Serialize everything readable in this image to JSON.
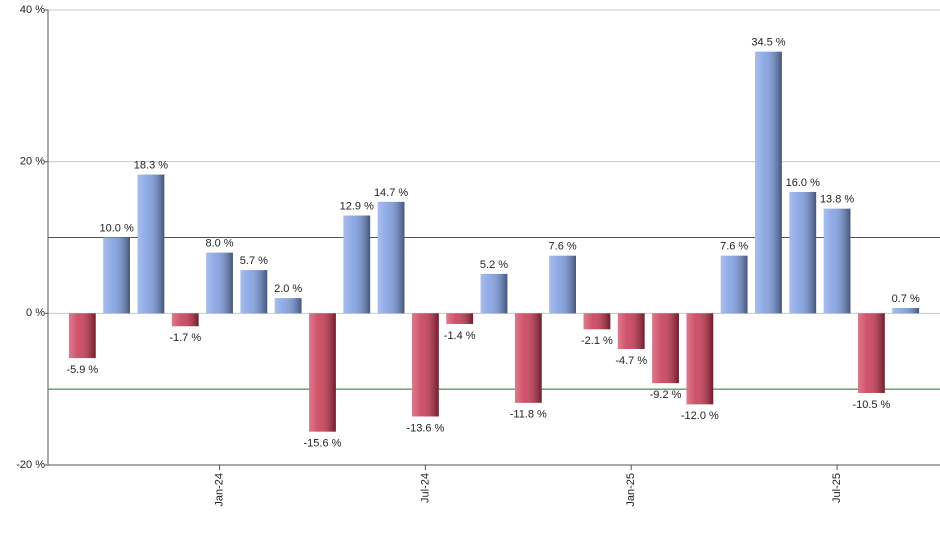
{
  "chart_data": {
    "type": "bar",
    "categories": [
      null,
      null,
      null,
      null,
      "Jan-24",
      null,
      null,
      null,
      null,
      null,
      "Jul-24",
      null,
      null,
      null,
      null,
      null,
      "Jan-25",
      null,
      null,
      null,
      null,
      null,
      "Jul-25",
      null,
      null
    ],
    "values": [
      -5.9,
      10.0,
      18.3,
      -1.7,
      8.0,
      5.7,
      2.0,
      -15.6,
      12.9,
      14.7,
      -13.6,
      -1.4,
      5.2,
      -11.8,
      7.6,
      -2.1,
      -4.7,
      -9.2,
      -12.0,
      7.6,
      34.5,
      16.0,
      13.8,
      -10.5,
      0.7
    ],
    "value_labels": [
      "-5.9 %",
      "10.0 %",
      "18.3 %",
      "-1.7 %",
      "8.0 %",
      "5.7 %",
      "2.0 %",
      "-15.6 %",
      "12.9 %",
      "14.7 %",
      "-13.6 %",
      "-1.4 %",
      "5.2 %",
      "-11.8 %",
      "7.6 %",
      "-2.1 %",
      "-4.7 %",
      "-9.2 %",
      "-12.0 %",
      "7.6 %",
      "34.5 %",
      "16.0 %",
      "13.8 %",
      "-10.5 %",
      "0.7 %"
    ],
    "positive_color": "#7a9ae0",
    "negative_color": "#c8334f",
    "ylim": [
      -20,
      40
    ],
    "yticks": [
      {
        "value": -20,
        "label": "-20 %"
      },
      {
        "value": 0,
        "label": "0 %"
      },
      {
        "value": 20,
        "label": "20 %"
      },
      {
        "value": 40,
        "label": "40 %"
      }
    ],
    "reference_lines": [
      10,
      -10
    ],
    "reference_color": "#1a7a1a",
    "grid": true
  }
}
